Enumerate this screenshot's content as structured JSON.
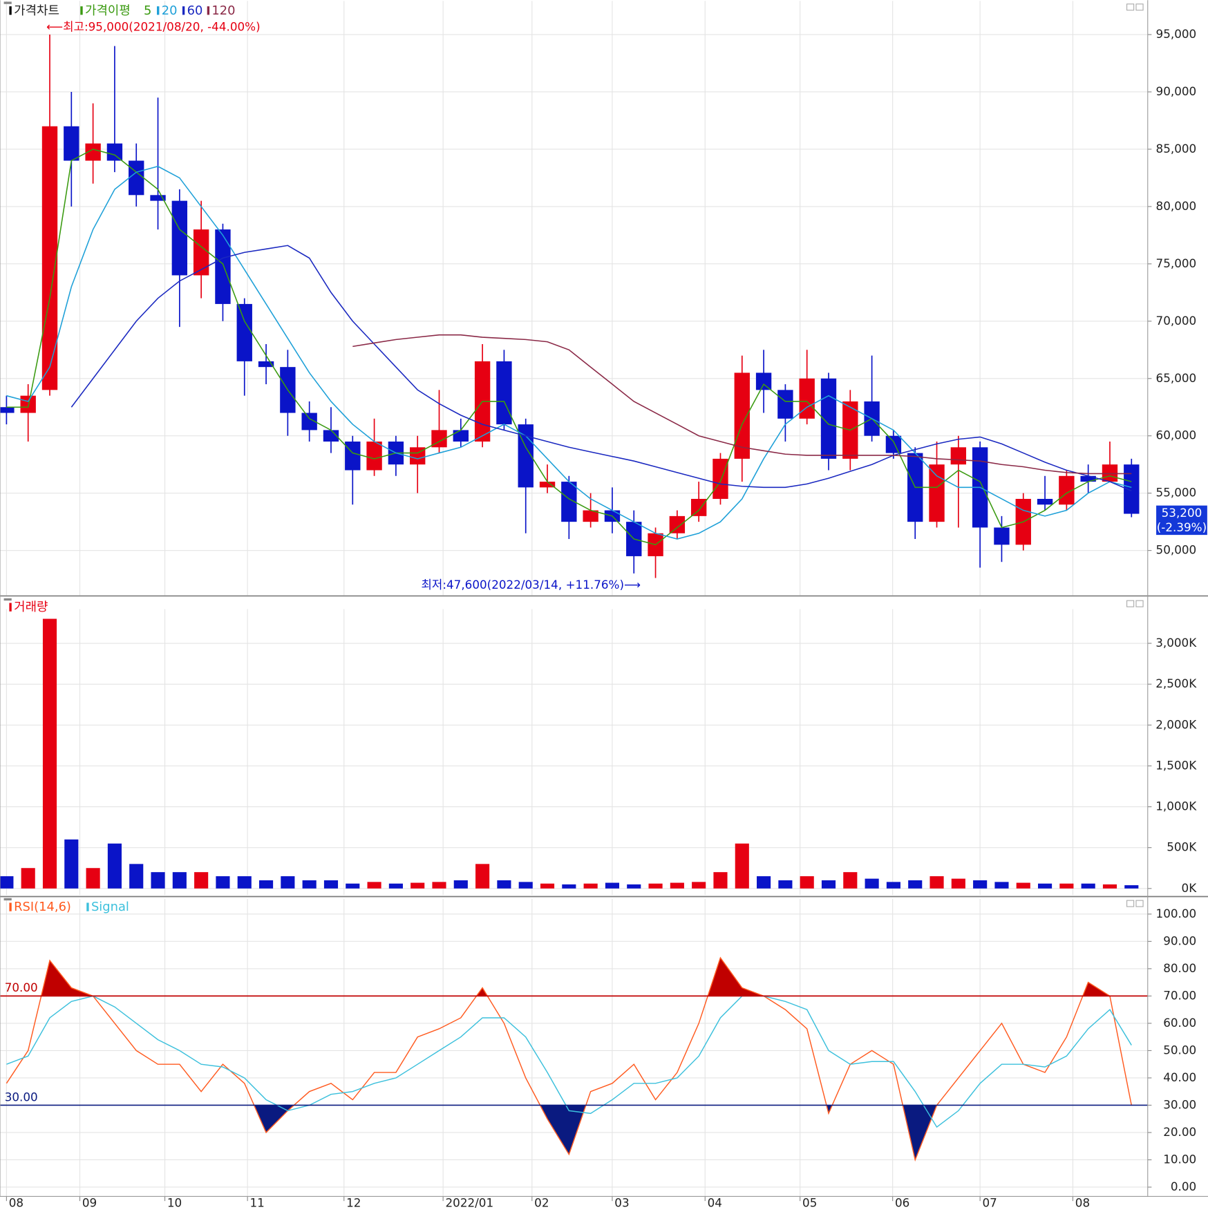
{
  "chart_data": [
    {
      "type": "candlestick",
      "title": "가격차트",
      "ma_title": "가격이평",
      "x": [
        0,
        1,
        2,
        3,
        4,
        5,
        6,
        7,
        8,
        9,
        10,
        11,
        12,
        13,
        14,
        15,
        16,
        17,
        18,
        19,
        20,
        21,
        22,
        23,
        24,
        25,
        26,
        27,
        28,
        29,
        30,
        31,
        32,
        33,
        34,
        35,
        36,
        37,
        38,
        39,
        40,
        41,
        42,
        43,
        44,
        45,
        46,
        47,
        48,
        49,
        50,
        51,
        52
      ],
      "open": [
        62500,
        62000,
        64000,
        87000,
        84000,
        85500,
        84000,
        81000,
        80500,
        74000,
        78000,
        71500,
        66500,
        66000,
        62000,
        60500,
        59500,
        57000,
        59500,
        57500,
        59000,
        60500,
        59500,
        66500,
        61000,
        55500,
        56000,
        52500,
        53500,
        52500,
        49500,
        51500,
        53000,
        54500,
        58000,
        65500,
        64000,
        61500,
        65000,
        58000,
        63000,
        60000,
        58500,
        52500,
        57500,
        59000,
        52000,
        50500,
        54500,
        54000,
        56500,
        56000,
        57500
      ],
      "high": [
        63500,
        64500,
        95000,
        90000,
        89000,
        94000,
        85500,
        89500,
        81500,
        80500,
        78500,
        72000,
        68000,
        67500,
        63000,
        62500,
        60000,
        61500,
        60000,
        60000,
        64000,
        61500,
        68000,
        67500,
        61500,
        57500,
        56500,
        55000,
        55500,
        53500,
        52000,
        53500,
        56000,
        58500,
        67000,
        67500,
        64500,
        67500,
        65500,
        64000,
        67000,
        60500,
        59000,
        59500,
        60000,
        59500,
        53000,
        55000,
        56500,
        57000,
        57500,
        59500,
        58000
      ],
      "low": [
        61000,
        59500,
        63500,
        80000,
        82000,
        83000,
        80000,
        78000,
        69500,
        72000,
        70000,
        63500,
        64500,
        60000,
        59500,
        58500,
        54000,
        56500,
        56500,
        55000,
        58500,
        59000,
        59000,
        60500,
        51500,
        55000,
        51000,
        52000,
        51500,
        48000,
        47600,
        51000,
        52500,
        54000,
        56000,
        62000,
        59500,
        61000,
        57000,
        57000,
        59500,
        58000,
        51000,
        52000,
        52000,
        48500,
        49000,
        50000,
        53500,
        53500,
        55000,
        56000,
        52900
      ],
      "close": [
        62000,
        63500,
        87000,
        84000,
        85500,
        84000,
        81000,
        80500,
        74000,
        78000,
        71500,
        66500,
        66000,
        62000,
        60500,
        59500,
        57000,
        59500,
        57500,
        59000,
        60500,
        59500,
        66500,
        61000,
        55500,
        56000,
        52500,
        53500,
        52500,
        49500,
        51500,
        53000,
        54500,
        58000,
        65500,
        64000,
        61500,
        65000,
        58000,
        63000,
        60000,
        58500,
        52500,
        57500,
        59000,
        52000,
        50500,
        54500,
        54000,
        56500,
        56000,
        57500,
        53200
      ],
      "up_color": "#e60012",
      "down_color": "#0a14c8",
      "series": [
        {
          "name": "5",
          "color": "#3a9a10",
          "values": [
            62500,
            62500,
            72000,
            84000,
            85000,
            84500,
            83000,
            81500,
            78000,
            76500,
            75000,
            70000,
            67000,
            64000,
            61500,
            60500,
            58500,
            58000,
            58500,
            58500,
            59500,
            60500,
            63000,
            63000,
            59000,
            56000,
            54500,
            53500,
            53000,
            51000,
            50500,
            52000,
            53500,
            56000,
            61000,
            64500,
            63000,
            63000,
            61000,
            60500,
            61500,
            59500,
            55500,
            55500,
            57000,
            56000,
            52000,
            52500,
            53500,
            55000,
            56000,
            56500,
            56000
          ]
        },
        {
          "name": "20",
          "color": "#1ea0d8",
          "values": [
            63500,
            63000,
            66000,
            73000,
            78000,
            81500,
            83000,
            83500,
            82500,
            80000,
            77500,
            74500,
            71500,
            68500,
            65500,
            63000,
            61000,
            59500,
            58500,
            58000,
            58500,
            59000,
            60000,
            61000,
            60000,
            58000,
            56000,
            54500,
            53500,
            52500,
            51500,
            51000,
            51500,
            52500,
            54500,
            58000,
            61000,
            62500,
            63500,
            62500,
            61500,
            60500,
            58500,
            56500,
            55500,
            55500,
            54500,
            53500,
            53000,
            53500,
            55000,
            56000,
            55500
          ]
        },
        {
          "name": "60",
          "color": "#1a28c0",
          "values": [
            null,
            null,
            null,
            62500,
            65000,
            67500,
            70000,
            72000,
            73500,
            74500,
            75500,
            76000,
            76300,
            76600,
            75500,
            72500,
            70000,
            68000,
            66000,
            64000,
            62800,
            61800,
            61000,
            60500,
            60000,
            59500,
            59000,
            58600,
            58200,
            57800,
            57300,
            56800,
            56300,
            55800,
            55600,
            55500,
            55500,
            55800,
            56300,
            56900,
            57500,
            58300,
            58800,
            59300,
            59700,
            59900,
            59300,
            58500,
            57700,
            57000,
            56500,
            56000,
            55200
          ]
        },
        {
          "name": "120",
          "color": "#8a2846",
          "values": [
            null,
            null,
            null,
            null,
            null,
            null,
            null,
            null,
            null,
            null,
            null,
            null,
            null,
            null,
            null,
            null,
            67800,
            68100,
            68400,
            68600,
            68800,
            68800,
            68600,
            68500,
            68400,
            68200,
            67500,
            66000,
            64500,
            63000,
            62000,
            61000,
            60000,
            59500,
            59000,
            58700,
            58400,
            58300,
            58300,
            58300,
            58300,
            58300,
            58200,
            58000,
            57900,
            57800,
            57500,
            57300,
            57000,
            56800,
            56700,
            56700,
            56700
          ]
        }
      ],
      "annotations": {
        "high": "⟵최고:95,000(2021/08/20, -44.00%)",
        "low": "최저:47,600(2022/03/14, +11.76%)⟶",
        "last_price": "53,200",
        "last_change": "(-2.39%)"
      },
      "xlim": [
        -0.3,
        52.75
      ],
      "ylim": [
        46100,
        97800
      ],
      "yticks": [
        {
          "value": 50000,
          "label": "50,000"
        },
        {
          "value": 55000,
          "label": "55,000"
        },
        {
          "value": 60000,
          "label": "60,000"
        },
        {
          "value": 65000,
          "label": "65,000"
        },
        {
          "value": 70000,
          "label": "70,000"
        },
        {
          "value": 75000,
          "label": "75,000"
        },
        {
          "value": 80000,
          "label": "80,000"
        },
        {
          "value": 85000,
          "label": "85,000"
        },
        {
          "value": 90000,
          "label": "90,000"
        },
        {
          "value": 95000,
          "label": "95,000"
        }
      ],
      "grid": true
    },
    {
      "type": "bar",
      "title": "거래량",
      "color": "#e60012",
      "x": [
        0,
        1,
        2,
        3,
        4,
        5,
        6,
        7,
        8,
        9,
        10,
        11,
        12,
        13,
        14,
        15,
        16,
        17,
        18,
        19,
        20,
        21,
        22,
        23,
        24,
        25,
        26,
        27,
        28,
        29,
        30,
        31,
        32,
        33,
        34,
        35,
        36,
        37,
        38,
        39,
        40,
        41,
        42,
        43,
        44,
        45,
        46,
        47,
        48,
        49,
        50,
        51,
        52
      ],
      "values": [
        150,
        250,
        3300,
        600,
        250,
        550,
        300,
        200,
        200,
        200,
        150,
        150,
        100,
        150,
        100,
        100,
        60,
        80,
        60,
        70,
        80,
        100,
        300,
        100,
        80,
        60,
        50,
        60,
        70,
        50,
        60,
        70,
        80,
        200,
        550,
        150,
        100,
        150,
        100,
        200,
        120,
        80,
        100,
        150,
        120,
        100,
        80,
        70,
        60,
        60,
        60,
        50,
        40
      ],
      "up_color": "#e60012",
      "down_color": "#0a14c8",
      "xlim": [
        -0.3,
        52.75
      ],
      "ylim": [
        -80,
        3400
      ],
      "yticks": [
        {
          "value": 0,
          "label": "0K"
        },
        {
          "value": 500,
          "label": "500K"
        },
        {
          "value": 1000,
          "label": "1,000K"
        },
        {
          "value": 1500,
          "label": "1,500K"
        },
        {
          "value": 2000,
          "label": "2,000K"
        },
        {
          "value": 2500,
          "label": "2,500K"
        },
        {
          "value": 3000,
          "label": "3,000K"
        }
      ],
      "grid": true
    },
    {
      "type": "line",
      "x": [
        0,
        1,
        2,
        3,
        4,
        5,
        6,
        7,
        8,
        9,
        10,
        11,
        12,
        13,
        14,
        15,
        16,
        17,
        18,
        19,
        20,
        21,
        22,
        23,
        24,
        25,
        26,
        27,
        28,
        29,
        30,
        31,
        32,
        33,
        34,
        35,
        36,
        37,
        38,
        39,
        40,
        41,
        42,
        43,
        44,
        45,
        46,
        47,
        48,
        49,
        50,
        51,
        52
      ],
      "series": [
        {
          "name": "RSI(14,6)",
          "color": "#ff5a1f",
          "values": [
            38,
            50,
            83,
            73,
            70,
            60,
            50,
            45,
            45,
            35,
            45,
            38,
            20,
            28,
            35,
            38,
            32,
            42,
            42,
            55,
            58,
            62,
            73,
            60,
            40,
            25,
            12,
            35,
            38,
            45,
            32,
            42,
            60,
            84,
            73,
            70,
            65,
            58,
            27,
            45,
            50,
            45,
            10,
            30,
            40,
            50,
            60,
            45,
            42,
            55,
            75,
            70,
            30
          ]
        },
        {
          "name": "Signal",
          "color": "#3cc0dc",
          "values": [
            45,
            48,
            62,
            68,
            70,
            66,
            60,
            54,
            50,
            45,
            44,
            40,
            32,
            28,
            30,
            34,
            35,
            38,
            40,
            45,
            50,
            55,
            62,
            62,
            55,
            42,
            28,
            27,
            32,
            38,
            38,
            40,
            48,
            62,
            70,
            70,
            68,
            65,
            50,
            45,
            46,
            46,
            35,
            22,
            28,
            38,
            45,
            45,
            44,
            48,
            58,
            65,
            52
          ]
        }
      ],
      "hlines": [
        {
          "value": 70,
          "label": "70.00",
          "color": "#c00000",
          "fill": "above"
        },
        {
          "value": 30,
          "label": "30.00",
          "color": "#0a1a80",
          "fill": "below"
        }
      ],
      "xlim": [
        -0.3,
        52.75
      ],
      "ylim": [
        -3.4,
        105
      ],
      "xticks": [
        {
          "value": 0,
          "label": "08"
        },
        {
          "value": 3.39,
          "label": "09"
        },
        {
          "value": 7.32,
          "label": "10"
        },
        {
          "value": 11.14,
          "label": "11"
        },
        {
          "value": 15.6,
          "label": "12"
        },
        {
          "value": 20.18,
          "label": "2022/01"
        },
        {
          "value": 24.29,
          "label": "02"
        },
        {
          "value": 28,
          "label": "03"
        },
        {
          "value": 32.29,
          "label": "04"
        },
        {
          "value": 36.68,
          "label": "05"
        },
        {
          "value": 40.96,
          "label": "06"
        },
        {
          "value": 45,
          "label": "07"
        },
        {
          "value": 49.29,
          "label": "08"
        }
      ],
      "yticks": [
        {
          "value": 0,
          "label": "0.00"
        },
        {
          "value": 10,
          "label": "10.00"
        },
        {
          "value": 20,
          "label": "20.00"
        },
        {
          "value": 30,
          "label": "30.00"
        },
        {
          "value": 40,
          "label": "40.00"
        },
        {
          "value": 50,
          "label": "50.00"
        },
        {
          "value": 60,
          "label": "60.00"
        },
        {
          "value": 70,
          "label": "70.00"
        },
        {
          "value": 80,
          "label": "80.00"
        },
        {
          "value": 90,
          "label": "90.00"
        },
        {
          "value": 100,
          "label": "100.00"
        }
      ],
      "grid": true
    }
  ]
}
